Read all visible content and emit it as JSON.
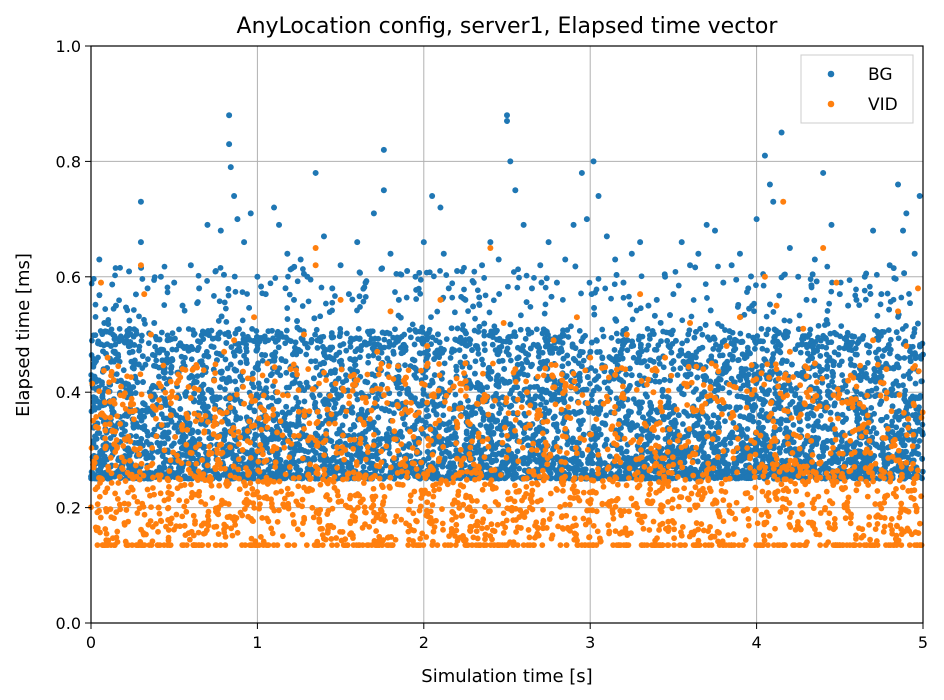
{
  "chart_data": {
    "type": "scatter",
    "title": "AnyLocation config, server1, Elapsed time vector",
    "xlabel": "Simulation time [s]",
    "ylabel": "Elapsed time [ms]",
    "xlim": [
      0,
      5
    ],
    "ylim": [
      0,
      1.0
    ],
    "xticks": [
      0,
      1,
      2,
      3,
      4,
      5
    ],
    "xtick_labels": [
      "0",
      "1",
      "2",
      "3",
      "4",
      "5"
    ],
    "yticks": [
      0.0,
      0.2,
      0.4,
      0.6,
      0.8,
      1.0
    ],
    "ytick_labels": [
      "0.0",
      "0.2",
      "0.4",
      "0.6",
      "0.8",
      "1.0"
    ],
    "grid": true,
    "legend_position": "top-right",
    "series": [
      {
        "name": "BG",
        "color": "#1f77b4",
        "marker": "dot",
        "x": [
          0.02,
          0.05,
          0.08,
          0.12,
          0.15,
          0.18,
          0.22,
          0.25,
          0.3,
          0.3,
          0.34,
          0.38,
          0.42,
          0.46,
          0.5,
          0.55,
          0.6,
          0.65,
          0.7,
          0.75,
          0.78,
          0.83,
          0.83,
          0.84,
          0.86,
          0.88,
          0.92,
          0.96,
          1.0,
          1.05,
          1.1,
          1.13,
          1.18,
          1.22,
          1.26,
          1.3,
          1.35,
          1.4,
          1.45,
          1.5,
          1.55,
          1.6,
          1.65,
          1.7,
          1.76,
          1.76,
          1.8,
          1.85,
          1.9,
          1.95,
          2.0,
          2.05,
          2.1,
          2.12,
          2.15,
          2.2,
          2.25,
          2.3,
          2.35,
          2.4,
          2.45,
          2.5,
          2.5,
          2.52,
          2.55,
          2.6,
          2.65,
          2.7,
          2.75,
          2.8,
          2.85,
          2.9,
          2.95,
          2.98,
          3.02,
          3.05,
          3.1,
          3.15,
          3.2,
          3.25,
          3.3,
          3.35,
          3.4,
          3.45,
          3.5,
          3.55,
          3.6,
          3.65,
          3.7,
          3.75,
          3.8,
          3.85,
          3.9,
          3.95,
          4.0,
          4.05,
          4.08,
          4.1,
          4.15,
          4.2,
          4.25,
          4.3,
          4.35,
          4.4,
          4.45,
          4.5,
          4.55,
          4.6,
          4.65,
          4.7,
          4.75,
          4.8,
          4.85,
          4.88,
          4.9,
          4.95,
          4.98
        ],
        "y": [
          0.45,
          0.63,
          0.52,
          0.48,
          0.55,
          0.42,
          0.5,
          0.47,
          0.73,
          0.66,
          0.58,
          0.52,
          0.6,
          0.49,
          0.59,
          0.55,
          0.62,
          0.58,
          0.69,
          0.61,
          0.68,
          0.88,
          0.83,
          0.79,
          0.74,
          0.7,
          0.66,
          0.71,
          0.6,
          0.57,
          0.72,
          0.69,
          0.64,
          0.56,
          0.63,
          0.6,
          0.78,
          0.67,
          0.58,
          0.62,
          0.57,
          0.66,
          0.59,
          0.71,
          0.82,
          0.75,
          0.64,
          0.56,
          0.61,
          0.6,
          0.66,
          0.74,
          0.72,
          0.64,
          0.58,
          0.61,
          0.56,
          0.59,
          0.62,
          0.66,
          0.63,
          0.88,
          0.87,
          0.8,
          0.75,
          0.69,
          0.58,
          0.62,
          0.66,
          0.59,
          0.63,
          0.69,
          0.78,
          0.7,
          0.8,
          0.74,
          0.67,
          0.63,
          0.59,
          0.64,
          0.66,
          0.55,
          0.56,
          0.6,
          0.57,
          0.66,
          0.62,
          0.64,
          0.69,
          0.68,
          0.59,
          0.62,
          0.64,
          0.58,
          0.7,
          0.81,
          0.76,
          0.73,
          0.85,
          0.65,
          0.6,
          0.56,
          0.63,
          0.78,
          0.69,
          0.57,
          0.55,
          0.56,
          0.6,
          0.68,
          0.57,
          0.62,
          0.76,
          0.68,
          0.71,
          0.64,
          0.74
        ]
      },
      {
        "name": "VID",
        "color": "#ff7f0e",
        "marker": "dot",
        "x": [
          0.03,
          0.06,
          0.1,
          0.14,
          0.2,
          0.24,
          0.3,
          0.32,
          0.36,
          0.42,
          0.48,
          0.55,
          0.6,
          0.68,
          0.74,
          0.8,
          0.86,
          0.92,
          0.98,
          1.05,
          1.12,
          1.2,
          1.28,
          1.35,
          1.35,
          1.42,
          1.5,
          1.58,
          1.65,
          1.72,
          1.8,
          1.88,
          1.95,
          2.02,
          2.1,
          2.18,
          2.25,
          2.32,
          2.4,
          2.48,
          2.55,
          2.62,
          2.7,
          2.78,
          2.85,
          2.92,
          3.0,
          3.08,
          3.15,
          3.22,
          3.3,
          3.38,
          3.45,
          3.52,
          3.6,
          3.68,
          3.75,
          3.82,
          3.9,
          3.98,
          4.05,
          4.12,
          4.16,
          4.2,
          4.28,
          4.35,
          4.4,
          4.48,
          4.55,
          4.62,
          4.7,
          4.78,
          4.85,
          4.9,
          4.97
        ],
        "y": [
          0.34,
          0.59,
          0.46,
          0.31,
          0.28,
          0.38,
          0.62,
          0.57,
          0.5,
          0.41,
          0.36,
          0.44,
          0.39,
          0.33,
          0.42,
          0.47,
          0.49,
          0.38,
          0.53,
          0.35,
          0.4,
          0.44,
          0.5,
          0.65,
          0.62,
          0.37,
          0.56,
          0.43,
          0.39,
          0.47,
          0.54,
          0.42,
          0.36,
          0.48,
          0.56,
          0.41,
          0.45,
          0.38,
          0.65,
          0.52,
          0.44,
          0.4,
          0.36,
          0.49,
          0.41,
          0.53,
          0.46,
          0.38,
          0.43,
          0.5,
          0.57,
          0.4,
          0.46,
          0.37,
          0.52,
          0.44,
          0.39,
          0.48,
          0.53,
          0.42,
          0.6,
          0.55,
          0.73,
          0.47,
          0.51,
          0.45,
          0.65,
          0.59,
          0.42,
          0.38,
          0.49,
          0.44,
          0.54,
          0.48,
          0.58
        ]
      }
    ]
  }
}
